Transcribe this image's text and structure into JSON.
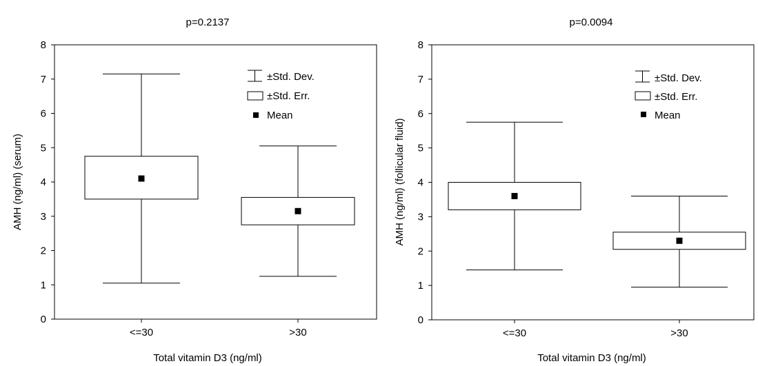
{
  "chart_data": [
    {
      "type": "box",
      "title": "p=0.2137",
      "xlabel": "Total vitamin D3 (ng/ml)",
      "ylabel": "AMH (ng/ml) (serum)",
      "ylim": [
        0,
        8
      ],
      "yticks": [
        "0",
        "1",
        "2",
        "3",
        "4",
        "5",
        "6",
        "7",
        "8"
      ],
      "categories": [
        "<=30",
        ">30"
      ],
      "mean": [
        4.1,
        3.15
      ],
      "se_lower": [
        3.5,
        2.75
      ],
      "se_upper": [
        4.75,
        3.55
      ],
      "sd_lower": [
        1.05,
        1.25
      ],
      "sd_upper": [
        7.15,
        5.05
      ],
      "legend": {
        "sd": "±Std. Dev.",
        "se": "±Std. Err.",
        "mean": "Mean"
      }
    },
    {
      "type": "box",
      "title": "p=0.0094",
      "xlabel": "Total vitamin D3 (ng/ml)",
      "ylabel": "AMH (ng/ml) (follicular fluid)",
      "ylim": [
        0,
        8
      ],
      "yticks": [
        "0",
        "1",
        "2",
        "3",
        "4",
        "5",
        "6",
        "7",
        "8"
      ],
      "categories": [
        "<=30",
        ">30"
      ],
      "mean": [
        3.6,
        2.3
      ],
      "se_lower": [
        3.2,
        2.05
      ],
      "se_upper": [
        4.0,
        2.55
      ],
      "sd_lower": [
        1.45,
        0.95
      ],
      "sd_upper": [
        5.75,
        3.6
      ],
      "legend": {
        "sd": "±Std. Dev.",
        "se": "±Std. Err.",
        "mean": "Mean"
      }
    }
  ]
}
